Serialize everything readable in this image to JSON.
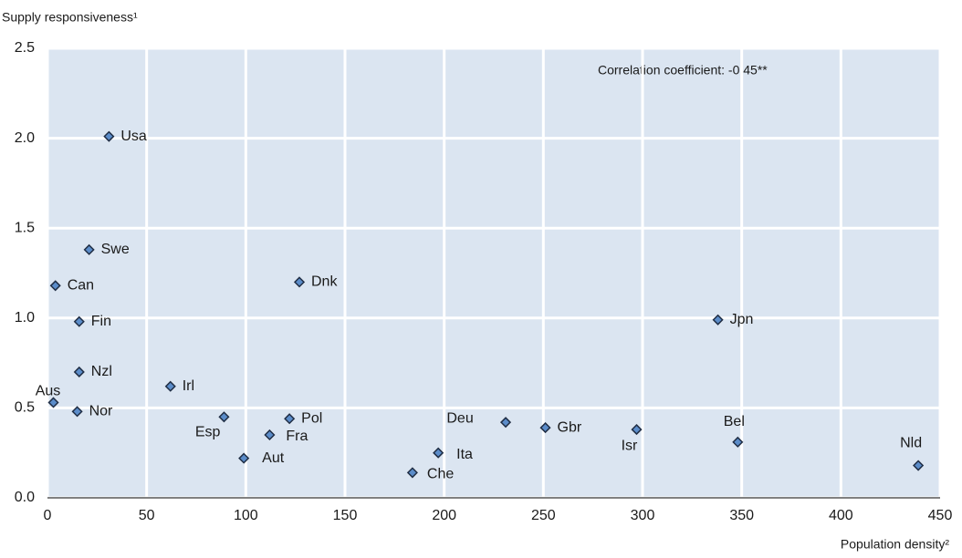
{
  "chart_data": {
    "type": "scatter",
    "y_label": "Supply responsiveness¹",
    "x_label": "Population density²",
    "annotation": "Correlation coefficient: -0.45**",
    "labels": [
      "Usa",
      "Swe",
      "Can",
      "Fin",
      "Nzl",
      "Aus",
      "Nor",
      "Irl",
      "Dnk",
      "Esp",
      "Aut",
      "Fra",
      "Pol",
      "Che",
      "Ita",
      "Deu",
      "Gbr",
      "Isr",
      "Jpn",
      "Bel",
      "Nld"
    ],
    "x": [
      31,
      21,
      4,
      16,
      16,
      3,
      15,
      62,
      127,
      89,
      99,
      112,
      122,
      184,
      197,
      231,
      251,
      297,
      338,
      348,
      439
    ],
    "values": [
      2.01,
      1.38,
      1.18,
      0.98,
      0.7,
      0.53,
      0.48,
      0.62,
      1.2,
      0.45,
      0.22,
      0.35,
      0.44,
      0.14,
      0.25,
      0.42,
      0.39,
      0.38,
      0.99,
      0.31,
      0.18
    ],
    "color": "#5b8cc9",
    "xlim": [
      0,
      450
    ],
    "xticks": [
      0,
      50,
      100,
      150,
      200,
      250,
      300,
      350,
      400,
      450
    ],
    "ylim": [
      0,
      2.5
    ],
    "yticks": [
      {
        "value": 0,
        "label": "0.0"
      },
      0.5,
      {
        "value": 1,
        "label": "1.0"
      },
      1.5,
      {
        "value": 2,
        "label": "2.0"
      },
      2.5
    ],
    "grid": true
  }
}
